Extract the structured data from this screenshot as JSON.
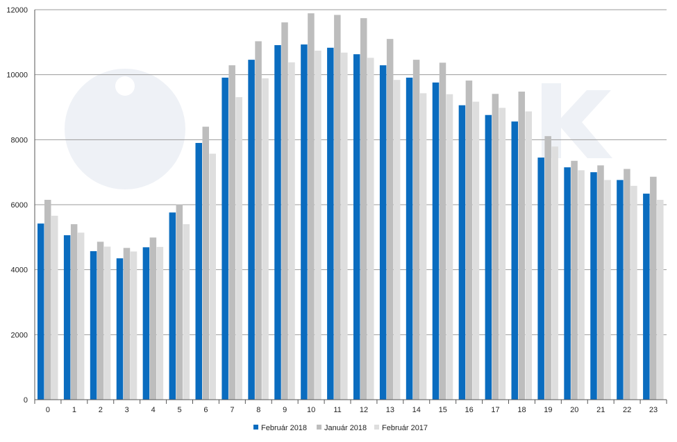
{
  "chart_data": {
    "type": "bar",
    "categories": [
      "0",
      "1",
      "2",
      "3",
      "4",
      "5",
      "6",
      "7",
      "8",
      "9",
      "10",
      "11",
      "12",
      "13",
      "14",
      "15",
      "16",
      "17",
      "18",
      "19",
      "20",
      "21",
      "22",
      "23"
    ],
    "series": [
      {
        "name": "Február 2018",
        "color": "#0a6cbf",
        "values": [
          5420,
          5060,
          4570,
          4350,
          4690,
          5760,
          7900,
          9910,
          10460,
          10910,
          10930,
          10830,
          10630,
          10290,
          9910,
          9760,
          9060,
          8760,
          8560,
          7450,
          7150,
          7000,
          6760,
          6340
        ]
      },
      {
        "name": "Január 2018",
        "color": "#bdbdbd",
        "values": [
          6150,
          5400,
          4860,
          4670,
          4990,
          6010,
          8400,
          10290,
          11030,
          11610,
          11890,
          11840,
          11740,
          11100,
          10460,
          10370,
          9820,
          9410,
          9480,
          8110,
          7350,
          7210,
          7100,
          6860
        ]
      },
      {
        "name": "Február 2017",
        "color": "#dedede",
        "values": [
          5660,
          5140,
          4710,
          4560,
          4700,
          5400,
          7570,
          9310,
          9890,
          10380,
          10740,
          10680,
          10520,
          9840,
          9430,
          9400,
          9170,
          8980,
          8870,
          7790,
          7060,
          6760,
          6580,
          6150
        ]
      }
    ],
    "y_ticks": [
      "0",
      "2000",
      "4000",
      "6000",
      "8000",
      "10000",
      "12000"
    ],
    "ylim": [
      0,
      12000
    ],
    "grid": true,
    "legend_position": "bottom-center"
  }
}
